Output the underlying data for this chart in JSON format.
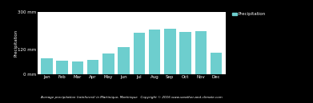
{
  "months": [
    "Jan",
    "Feb",
    "Mar",
    "Apr",
    "May",
    "Jun",
    "Jul",
    "Aug",
    "Sep",
    "Oct",
    "Nov",
    "Dec"
  ],
  "precipitation": [
    78,
    65,
    60,
    70,
    100,
    130,
    200,
    215,
    220,
    205,
    210,
    105
  ],
  "bar_color": "#6dcece",
  "background_color": "#000000",
  "plot_bg_color": "#ffffff",
  "ylim": [
    0,
    300
  ],
  "yticks": [
    0,
    120,
    300
  ],
  "ytick_labels": [
    "0 mm",
    "120 mm",
    "300 mm"
  ],
  "ylabel": "Precipitation",
  "title": "Average precipitation (rainforest) in Martinique, Martinique   Copyright © 2016 www.weather-and-climate.com",
  "legend_label": "Precipitation",
  "legend_color": "#6dcece"
}
